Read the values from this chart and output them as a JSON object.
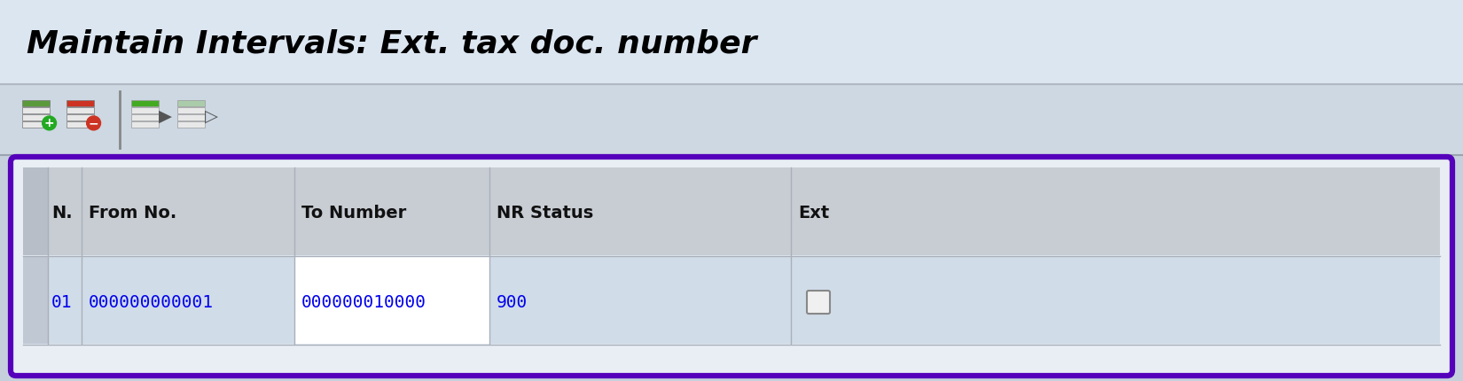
{
  "title": "Maintain Intervals: Ext. tax doc. number",
  "bg_top": "#dce6f0",
  "bg_toolbar": "#cdd8e3",
  "bg_main": "#c5d0dc",
  "table_border_color": "#5500bb",
  "table_header_bg_left": "#c8cdd4",
  "table_header_bg_right": "#c8cdd4",
  "table_data_bg_left": "#d0dce8",
  "table_data_bg_mid": "#ffffff",
  "table_data_bg_right": "#d0dce8",
  "table_outer_bg": "#e8eef4",
  "col_headers": [
    "N.",
    "From No.",
    "To Number",
    "NR Status",
    "Ext"
  ],
  "row_no": "01",
  "row_from": "000000000001",
  "row_to": "000000010000",
  "row_nr": "900",
  "data_color": "#0000ee",
  "header_text_color": "#111111",
  "title_color": "#000000",
  "title_bg": "#dce6f1",
  "toolbar_separator_color": "#888888",
  "col_sep_color": "#aab0ba",
  "row_sep_color": "#aab0ba"
}
